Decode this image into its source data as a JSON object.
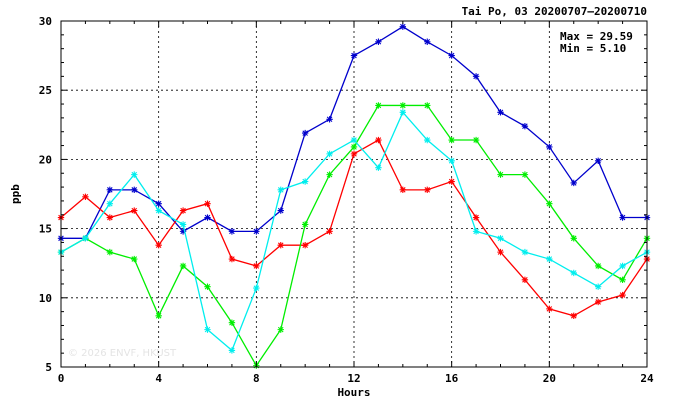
{
  "title": "Tai Po, 03 20200707–20200710",
  "stats": {
    "max_label": "Max = 29.59",
    "min_label": "Min =  5.10"
  },
  "watermark": "© 2026 ENVF, HKUST",
  "chart_data": {
    "type": "line",
    "title": "Tai Po, 03 20200707–20200710",
    "xlabel": "Hours",
    "ylabel": "ppb",
    "xlim": [
      0,
      24
    ],
    "ylim": [
      5,
      30
    ],
    "xticks": [
      0,
      4,
      8,
      12,
      16,
      20,
      24
    ],
    "yticks": [
      5,
      10,
      15,
      20,
      25,
      30
    ],
    "grid": true,
    "x": [
      0,
      1,
      2,
      3,
      4,
      5,
      6,
      7,
      8,
      9,
      10,
      11,
      12,
      13,
      14,
      15,
      16,
      17,
      18,
      19,
      20,
      21,
      22,
      23,
      24
    ],
    "series": [
      {
        "color": "#0000cc",
        "values": [
          14.3,
          14.3,
          17.8,
          17.8,
          16.8,
          14.8,
          15.8,
          14.8,
          14.8,
          16.3,
          21.9,
          22.9,
          27.5,
          28.5,
          29.59,
          28.5,
          27.5,
          26.0,
          23.4,
          22.4,
          20.9,
          18.3,
          19.9,
          15.8,
          15.8
        ]
      },
      {
        "color": "#ff0000",
        "values": [
          15.8,
          17.3,
          15.8,
          16.3,
          13.8,
          16.3,
          16.8,
          12.8,
          12.3,
          13.8,
          13.8,
          14.8,
          20.4,
          21.4,
          17.8,
          17.8,
          18.4,
          15.8,
          13.3,
          11.3,
          9.2,
          8.7,
          9.7,
          10.2,
          12.8
        ]
      },
      {
        "color": "#00ee00",
        "values": [
          13.3,
          14.3,
          13.3,
          12.8,
          8.7,
          12.3,
          10.8,
          8.2,
          5.1,
          7.7,
          15.3,
          18.9,
          20.9,
          23.9,
          23.9,
          23.9,
          21.4,
          21.4,
          18.9,
          18.9,
          16.8,
          14.3,
          12.3,
          11.3,
          14.3
        ]
      },
      {
        "color": "#00eeee",
        "values": [
          13.3,
          14.3,
          16.8,
          18.9,
          16.3,
          15.3,
          7.7,
          6.2,
          10.7,
          17.8,
          18.4,
          20.4,
          21.4,
          19.4,
          23.4,
          21.4,
          19.9,
          14.8,
          14.3,
          13.3,
          12.8,
          11.8,
          10.8,
          12.3,
          13.3
        ]
      }
    ]
  }
}
